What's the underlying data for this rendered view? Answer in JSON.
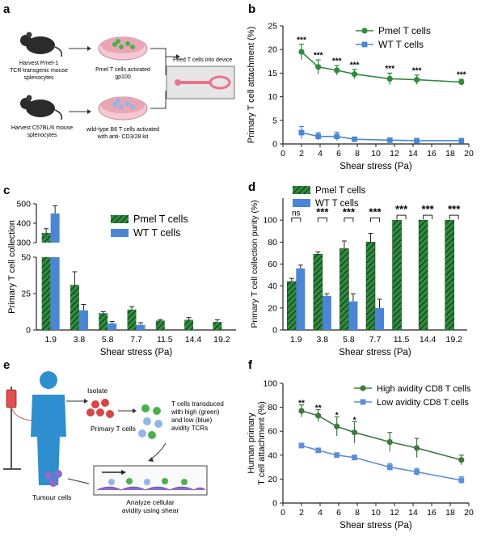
{
  "panels": {
    "a": {
      "label": "a",
      "harvest_pmel": [
        "Harvest Pmel-1",
        "TCR-transgenic mouse",
        "splenocytes"
      ],
      "harvest_c57": [
        "Harvest C57BL/6 mouse",
        "splenocytes"
      ],
      "pmel_activated": [
        "Pmel  T cells activated",
        "gp100"
      ],
      "wt_activated": [
        "wild-type B6 T cells activated",
        "with anti- CD3/28 kit"
      ],
      "feed": "Feed T cells into device"
    },
    "e": {
      "label": "e",
      "isolate": "Isolate",
      "primary": "Primary T cells",
      "transduced": [
        "T cells transduced",
        "with high (green)",
        "and low (blue)",
        "avidity TCRs"
      ],
      "tumour": "Tumour cells",
      "analyze": [
        "Analyze cellular",
        "avidity using shear"
      ]
    }
  },
  "chart_data": [
    {
      "id": "b",
      "label": "b",
      "type": "line",
      "xlabel": "Shear stress (Pa)",
      "ylabel": "Primary T cell attachment (%)",
      "xlim": [
        0,
        20
      ],
      "ylim": [
        0,
        25
      ],
      "xticks": [
        "0",
        "2",
        "4",
        "6",
        "8",
        "10",
        "12",
        "14",
        "16",
        "18",
        "20"
      ],
      "yticks": [
        "0",
        "5",
        "10",
        "15",
        "20",
        "25"
      ],
      "x": [
        2,
        3.8,
        5.8,
        7.7,
        11.5,
        14.4,
        19.2
      ],
      "series": [
        {
          "name": "Pmel T cells",
          "color": "#2e8b3e",
          "marker": "circle",
          "values": [
            19.5,
            16.3,
            15.6,
            14.8,
            13.8,
            13.6,
            13.1
          ],
          "err": [
            1.6,
            1.5,
            1.0,
            1.0,
            1.2,
            1.0,
            0.6
          ]
        },
        {
          "name": "WT T cells",
          "color": "#4a86d4",
          "marker": "square",
          "values": [
            2.4,
            1.6,
            1.6,
            1.0,
            0.8,
            0.7,
            0.7
          ],
          "err": [
            1.3,
            0.8,
            0.9,
            0.4,
            0.3,
            0.3,
            0.3
          ]
        }
      ],
      "annotations": [
        {
          "x": 2,
          "y": 22.2,
          "text": "***"
        },
        {
          "x": 3.8,
          "y": 18.9,
          "text": "***"
        },
        {
          "x": 5.8,
          "y": 17.7,
          "text": "***"
        },
        {
          "x": 7.7,
          "y": 16.9,
          "text": "***"
        },
        {
          "x": 11.5,
          "y": 16.1,
          "text": "***"
        },
        {
          "x": 14.4,
          "y": 15.7,
          "text": "***"
        },
        {
          "x": 19.2,
          "y": 14.8,
          "text": "***"
        }
      ]
    },
    {
      "id": "c",
      "label": "c",
      "type": "bar",
      "xlabel": "Shear stress (Pa)",
      "ylabel": "Primary T cell collection",
      "categories": [
        "1.9",
        "3.8",
        "5.8",
        "7.7",
        "11.5",
        "14.4",
        "19.2"
      ],
      "lower_ylim": [
        0,
        50
      ],
      "upper_ylim": [
        300,
        500
      ],
      "lower_yticks": [
        "0",
        "25",
        "50"
      ],
      "upper_yticks": [
        "300",
        "400",
        "500"
      ],
      "series": [
        {
          "name": "Pmel T cells",
          "color": "#2e8b3e",
          "pattern": "hatched",
          "values": [
            350,
            31,
            11.5,
            14,
            6.5,
            7,
            5.5
          ],
          "err": [
            22,
            9,
            1,
            2,
            0.6,
            1.5,
            1.5
          ]
        },
        {
          "name": "WT T cells",
          "color": "#4a86d4",
          "values": [
            450,
            13.5,
            4.5,
            3.5,
            0,
            0,
            0
          ],
          "err": [
            40,
            4,
            1.3,
            1.5,
            0,
            0,
            0
          ]
        }
      ]
    },
    {
      "id": "d",
      "label": "d",
      "type": "bar",
      "xlabel": "Shear stress (Pa)",
      "ylabel": "Primary T cell collection purity (%)",
      "categories": [
        "1.9",
        "3.8",
        "5.8",
        "7.7",
        "11.5",
        "14.4",
        "19.2"
      ],
      "ylim": [
        0,
        120
      ],
      "yticks": [
        "0",
        "20",
        "40",
        "60",
        "80",
        "100"
      ],
      "series": [
        {
          "name": "Pmel T cells",
          "color": "#2e8b3e",
          "pattern": "hatched",
          "values": [
            44,
            69,
            74,
            80,
            100,
            100,
            100
          ],
          "err": [
            3,
            2,
            7,
            8,
            0,
            0,
            0
          ]
        },
        {
          "name": "WT T cells",
          "color": "#4a86d4",
          "values": [
            56,
            31,
            26,
            20,
            0,
            0,
            0
          ],
          "err": [
            3,
            2,
            7,
            8,
            0,
            0,
            0
          ]
        }
      ],
      "significance": [
        "ns",
        "***",
        "***",
        "***",
        "***",
        "***",
        "***"
      ]
    },
    {
      "id": "f",
      "label": "f",
      "type": "line",
      "xlabel": "Shear stress (Pa)",
      "ylabel": [
        "Human primary",
        "T cell attachment (%)"
      ],
      "xlim": [
        0,
        20
      ],
      "ylim": [
        0,
        100
      ],
      "xticks": [
        "0",
        "2",
        "4",
        "6",
        "8",
        "10",
        "12",
        "14",
        "16",
        "18",
        "20"
      ],
      "yticks": [
        "0",
        "20",
        "40",
        "60",
        "80",
        "100"
      ],
      "x": [
        2,
        3.8,
        5.8,
        7.7,
        11.5,
        14.4,
        19.2
      ],
      "series": [
        {
          "name": "High avidity CD8 T cells",
          "color": "#3d7a3d",
          "marker": "circle",
          "values": [
            77,
            73,
            64,
            59,
            51,
            46,
            36
          ],
          "err": [
            5,
            5,
            8,
            9,
            8,
            8,
            4
          ]
        },
        {
          "name": "Low avidity CD8 T cells",
          "color": "#5b8fd6",
          "marker": "square",
          "values": [
            48,
            44,
            40,
            38,
            30,
            26,
            19
          ],
          "err": [
            2,
            1.5,
            2,
            2,
            3,
            3,
            3
          ]
        }
      ],
      "annotations": [
        {
          "x": 2,
          "y": 84,
          "text": "**"
        },
        {
          "x": 3.8,
          "y": 80,
          "text": "**"
        },
        {
          "x": 5.8,
          "y": 74,
          "text": "*"
        },
        {
          "x": 7.7,
          "y": 70,
          "text": "*"
        }
      ]
    }
  ]
}
